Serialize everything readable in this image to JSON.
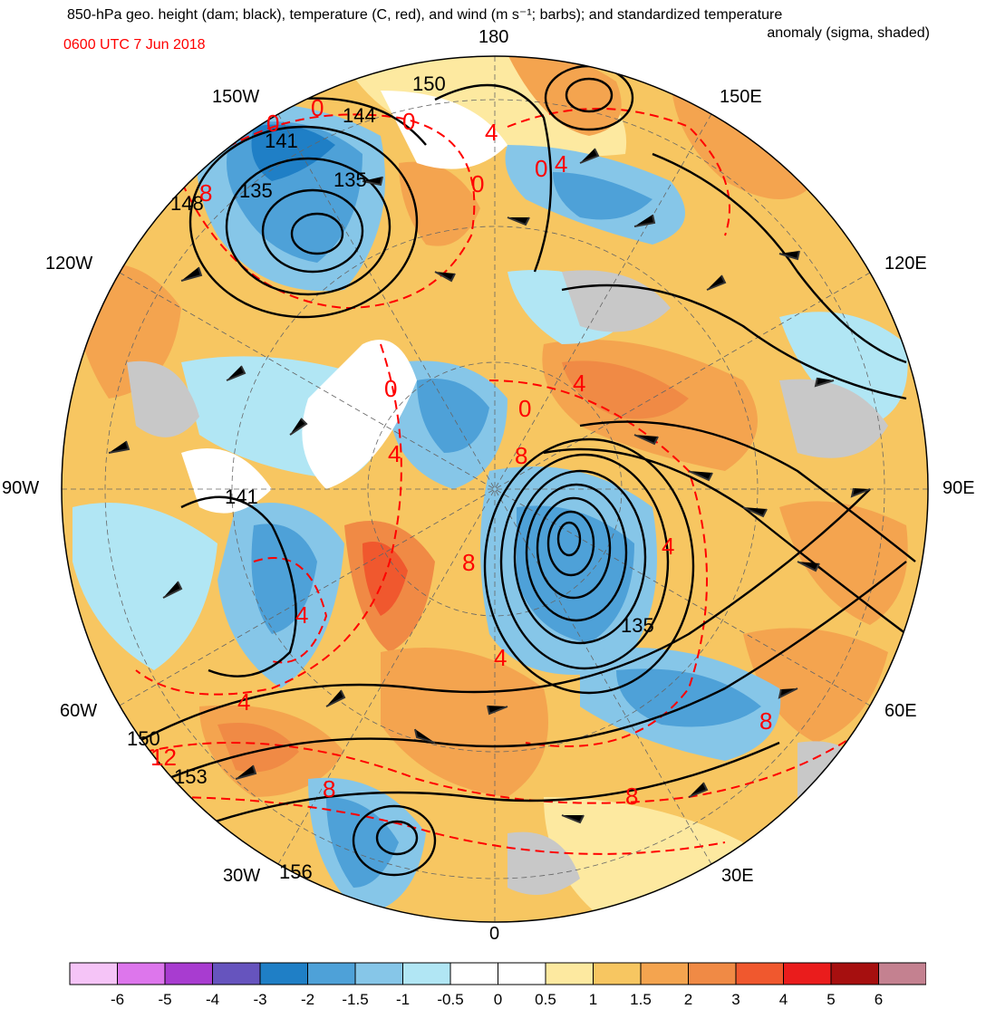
{
  "title": {
    "line1": "850-hPa geo. height (dam; black), temperature (C, red), and wind (m s⁻¹; barbs); and standardized temperature",
    "line2": "anomaly (sigma, shaded)",
    "datetime": "0600 UTC 7 Jun 2018"
  },
  "longitude_labels": {
    "deg180": "180",
    "w150": "150W",
    "e150": "150E",
    "w120": "120W",
    "e120": "120E",
    "w90": "90W",
    "e90": "90E",
    "w60": "60W",
    "e60": "60E",
    "w30": "30W",
    "e30": "30E",
    "deg0": "0"
  },
  "height_contour_labels": [
    "150",
    "144",
    "141",
    "135",
    "135",
    "148",
    "141",
    "135",
    "150",
    "153",
    "156"
  ],
  "temperature_contour_labels": [
    "0",
    "0",
    "0",
    "4",
    "0",
    "0",
    "4",
    "8",
    "0",
    "4",
    "4",
    "4",
    "4",
    "8",
    "4",
    "12",
    "8",
    "8",
    "8",
    "8",
    "0",
    "4"
  ],
  "colorbar": {
    "colors": [
      "#f5c4f7",
      "#dd76ec",
      "#a83cd0",
      "#6654be",
      "#1f7fc6",
      "#4ea1d8",
      "#86c6e8",
      "#b1e6f4",
      "#ffffff",
      "#ffffff",
      "#fde9a0",
      "#f7c661",
      "#f4a44f",
      "#f08a45",
      "#f0582e",
      "#ea1c1c",
      "#a60f0f",
      "#c48190"
    ],
    "labels": [
      "-6",
      "-5",
      "-4",
      "-3",
      "-2",
      "-1.5",
      "-1",
      "-0.5",
      "0",
      "0.5",
      "1",
      "1.5",
      "2",
      "3",
      "4",
      "5",
      "6"
    ]
  },
  "colors": {
    "height_contours": "#000000",
    "temperature_contours": "#ff0000",
    "land_no_anomaly": "#c8c8c8"
  }
}
